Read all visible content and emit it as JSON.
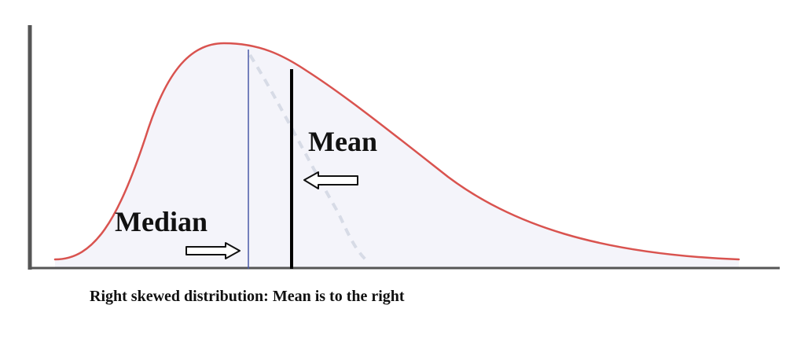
{
  "labels": {
    "mean": "Mean",
    "median": "Median"
  },
  "caption": "Right skewed distribution: Mean is to the right",
  "colors": {
    "curve": "#d9534f",
    "axis": "#555555",
    "median_line": "#4a5aa8",
    "mean_line": "#000000",
    "fill": "#f4f4fa",
    "dashed_shadow": "#d7dbe6"
  },
  "icons": {
    "median_arrow": "right-arrow-icon",
    "mean_arrow": "left-arrow-icon"
  }
}
